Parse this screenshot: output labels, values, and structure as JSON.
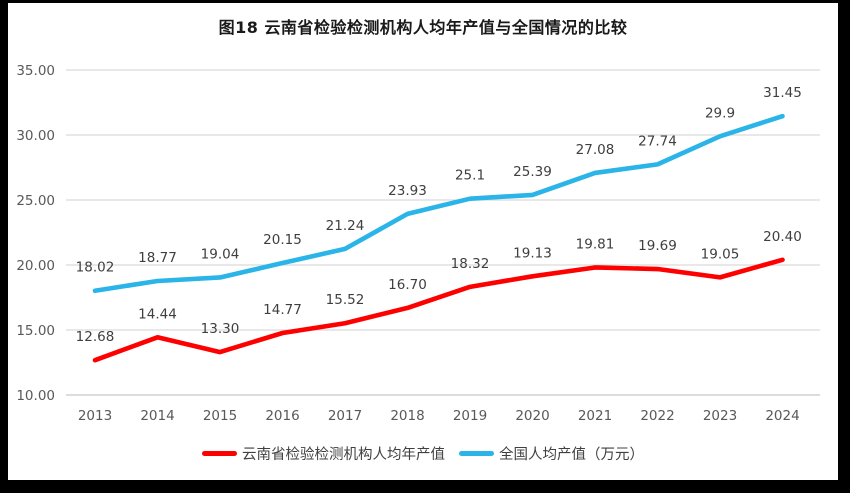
{
  "title": "图18  云南省检验检测机构人均年产值与全国情况的比较",
  "chart_data": {
    "type": "line",
    "title": "图18  云南省检验检测机构人均年产值与全国情况的比较",
    "x": [
      2013,
      2014,
      2015,
      2016,
      2017,
      2018,
      2019,
      2020,
      2021,
      2022,
      2023,
      2024
    ],
    "x_labels": [
      "2013",
      "2014",
      "2015",
      "2016",
      "2017",
      "2018",
      "2019",
      "2020",
      "2021",
      "2022",
      "2023",
      "2024"
    ],
    "series": [
      {
        "name": "云南省检验检测机构人均年产值",
        "color": "#fe0000",
        "values": [
          12.68,
          14.44,
          13.3,
          14.77,
          15.52,
          16.7,
          18.32,
          19.13,
          19.81,
          19.69,
          19.05,
          20.4
        ],
        "labels": [
          "12.68",
          "14.44",
          "13.30",
          "14.77",
          "15.52",
          "16.70",
          "18.32",
          "19.13",
          "19.81",
          "19.69",
          "19.05",
          "20.40"
        ]
      },
      {
        "name": "全国人均产值（万元）",
        "color": "#2ab4e8",
        "values": [
          18.02,
          18.77,
          19.04,
          20.15,
          21.24,
          23.93,
          25.1,
          25.39,
          27.08,
          27.74,
          29.9,
          31.45
        ],
        "labels": [
          "18.02",
          "18.77",
          "19.04",
          "20.15",
          "21.24",
          "23.93",
          "25.1",
          "25.39",
          "27.08",
          "27.74",
          "29.9",
          "31.45"
        ]
      }
    ],
    "ylim": [
      10,
      35
    ],
    "yticks": [
      10,
      15,
      20,
      25,
      30,
      35
    ],
    "ytick_labels": [
      "10.00",
      "15.00",
      "20.00",
      "25.00",
      "30.00",
      "35.00"
    ],
    "xlabel": "",
    "ylabel": "",
    "grid": true,
    "legend_position": "bottom",
    "colors": {
      "gridline": "#d9d9d9",
      "bottom_gridline": "#c6c6c6",
      "tick_label": "#595959",
      "data_label": "#3f3f3f",
      "title": "#1a1a1a",
      "background": "#ffffff",
      "frame": "#000000"
    }
  }
}
